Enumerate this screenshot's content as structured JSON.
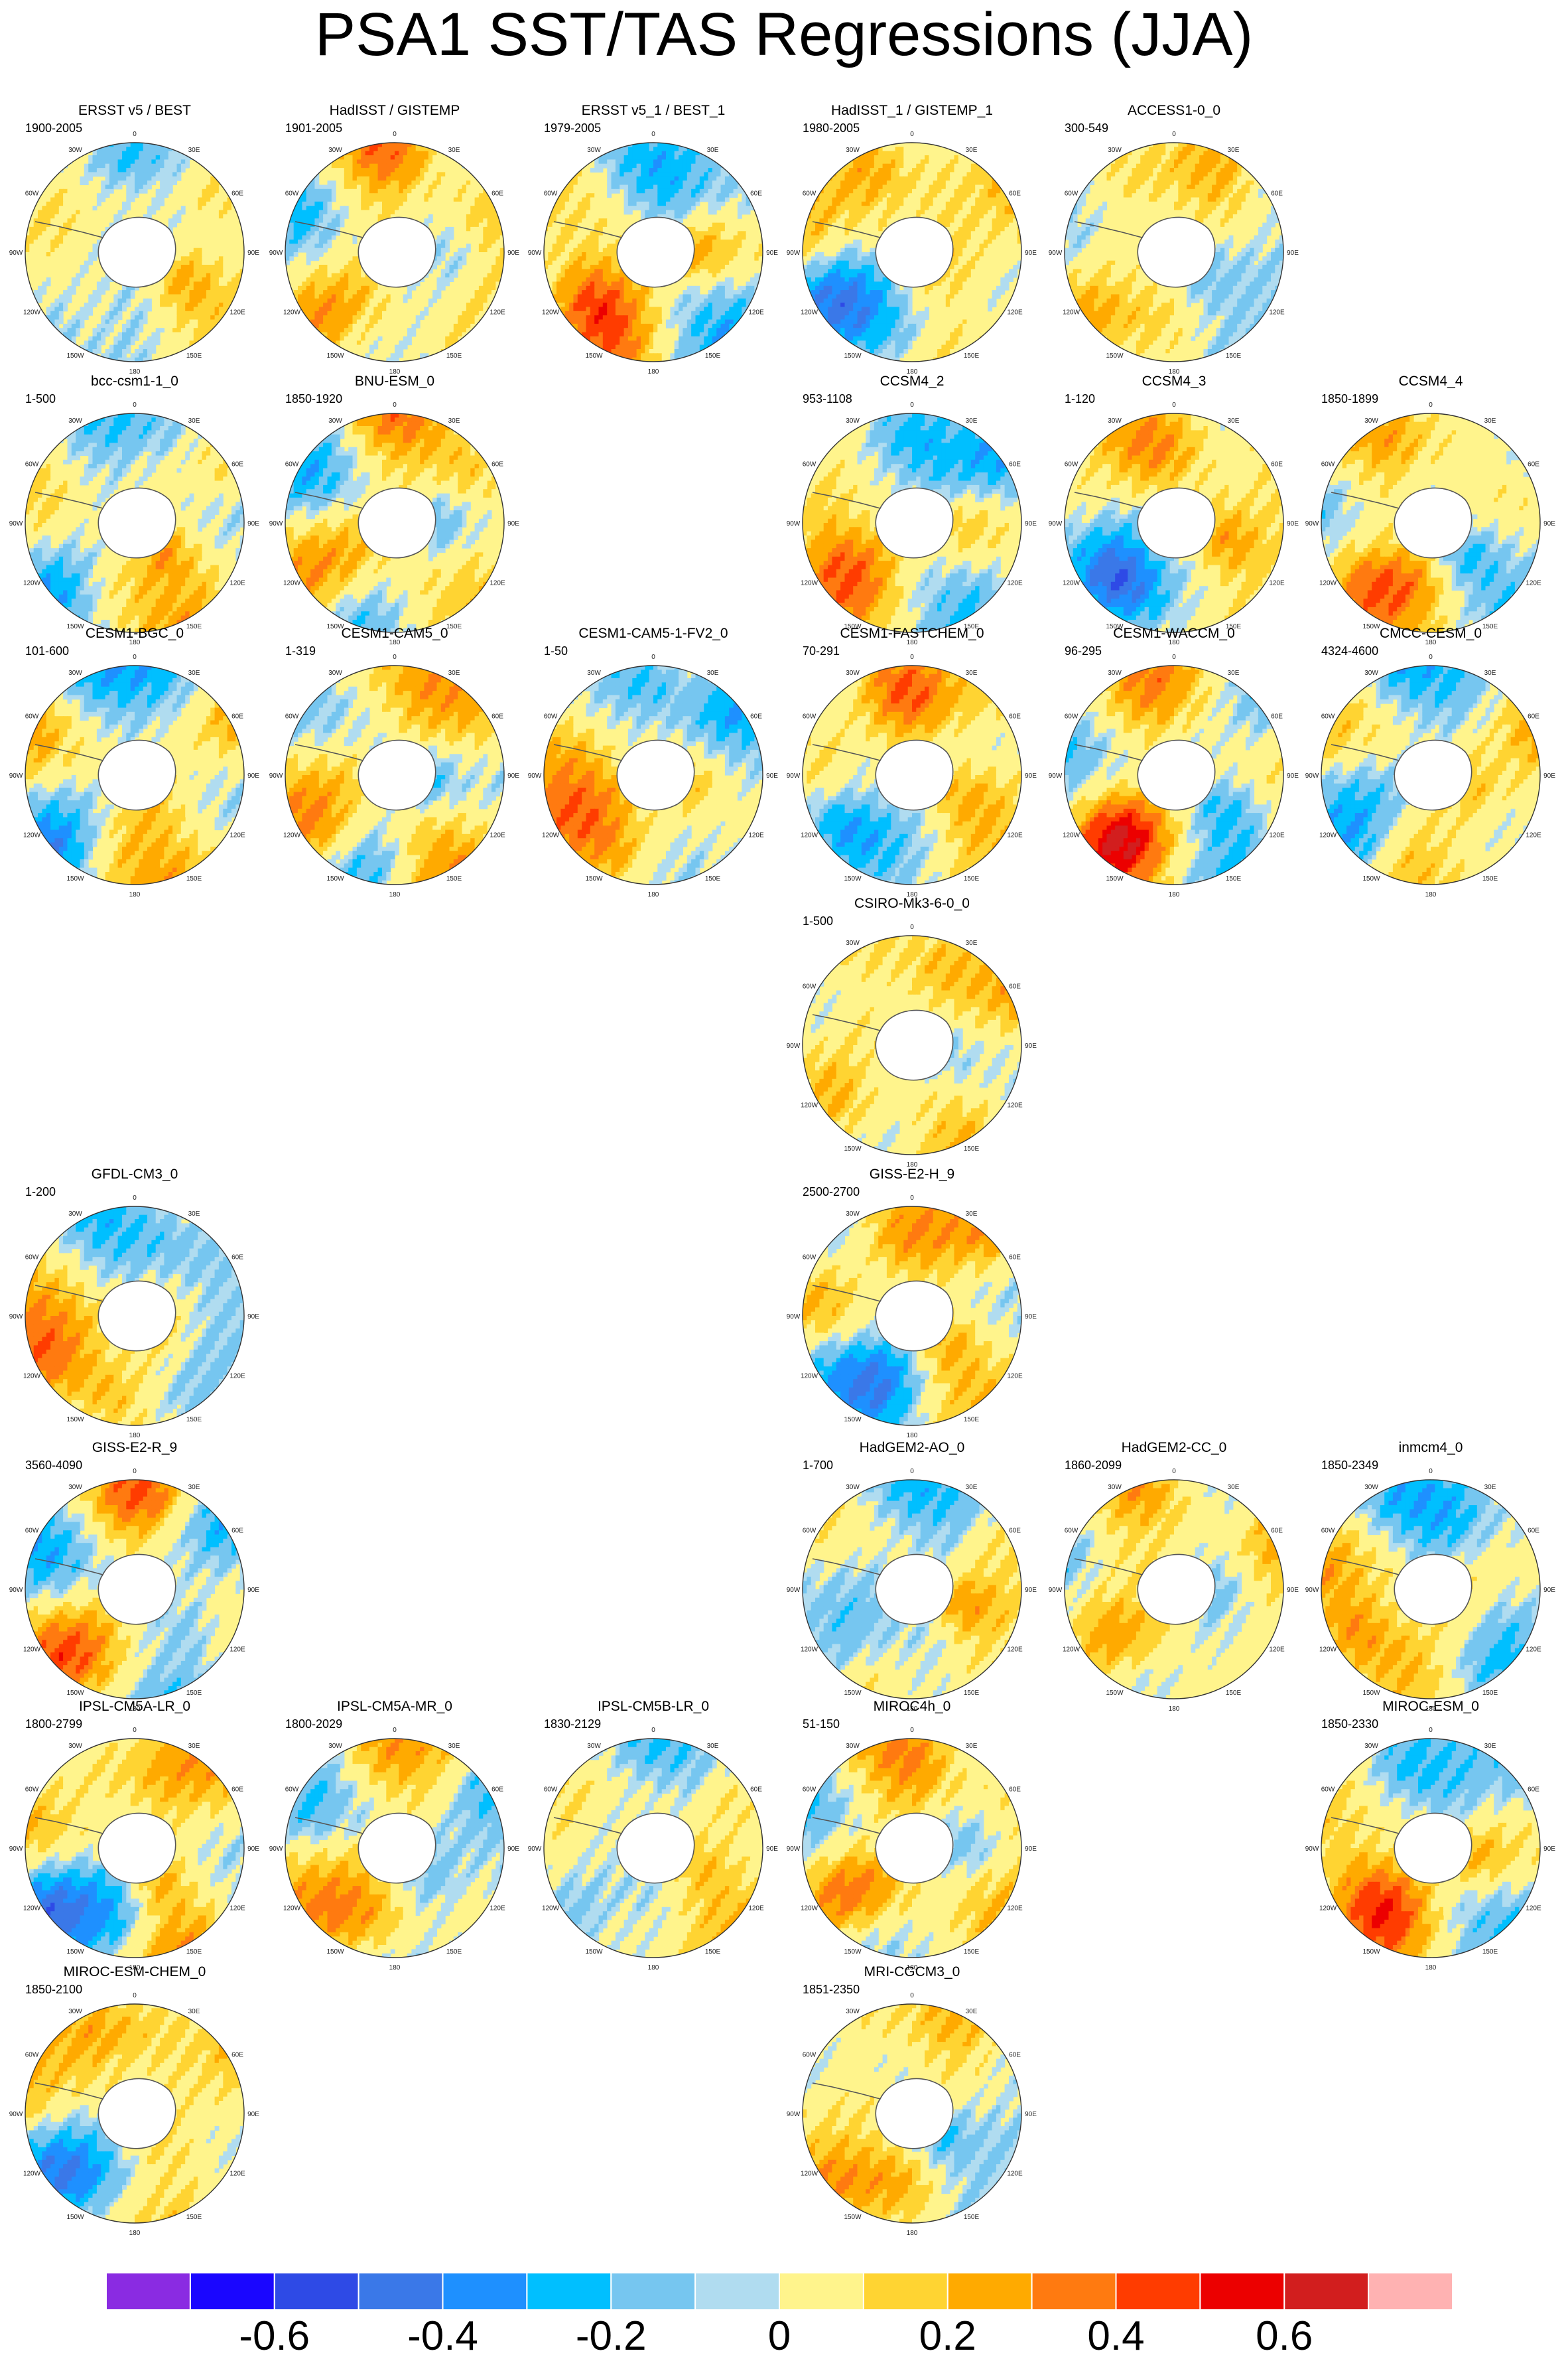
{
  "chart_data": {
    "type": "map",
    "title": "PSA1 SST/TAS Regressions (JJA)",
    "projection": "south-polar stereographic",
    "lon_labels": [
      "0",
      "30E",
      "60E",
      "90E",
      "120E",
      "150E",
      "180",
      "150W",
      "120W",
      "90W",
      "60W",
      "30W"
    ],
    "panels": [
      {
        "name": "ERSST v5 / BEST",
        "years": "1900-2005",
        "row": 0,
        "col": 0
      },
      {
        "name": "HadISST / GISTEMP",
        "years": "1901-2005",
        "row": 0,
        "col": 1
      },
      {
        "name": "ERSST v5_1 / BEST_1",
        "years": "1979-2005",
        "row": 0,
        "col": 2
      },
      {
        "name": "HadISST_1 / GISTEMP_1",
        "years": "1980-2005",
        "row": 0,
        "col": 3
      },
      {
        "name": "ACCESS1-0_0",
        "years": "300-549",
        "row": 0,
        "col": 4
      },
      {
        "name": "bcc-csm1-1_0",
        "years": "1-500",
        "row": 1,
        "col": 0
      },
      {
        "name": "BNU-ESM_0",
        "years": "1850-1920",
        "row": 1,
        "col": 1
      },
      {
        "name": "CCSM4_2",
        "years": "953-1108",
        "row": 1,
        "col": 3
      },
      {
        "name": "CCSM4_3",
        "years": "1-120",
        "row": 1,
        "col": 4
      },
      {
        "name": "CCSM4_4",
        "years": "1850-1899",
        "row": 1,
        "col": 5
      },
      {
        "name": "CESM1-BGC_0",
        "years": "101-600",
        "row": 2,
        "col": 0
      },
      {
        "name": "CESM1-CAM5_0",
        "years": "1-319",
        "row": 2,
        "col": 1
      },
      {
        "name": "CESM1-CAM5-1-FV2_0",
        "years": "1-50",
        "row": 2,
        "col": 2
      },
      {
        "name": "CESM1-FASTCHEM_0",
        "years": "70-291",
        "row": 2,
        "col": 3
      },
      {
        "name": "CESM1-WACCM_0",
        "years": "96-295",
        "row": 2,
        "col": 4
      },
      {
        "name": "CMCC-CESM_0",
        "years": "4324-4600",
        "row": 2,
        "col": 5
      },
      {
        "name": "CSIRO-Mk3-6-0_0",
        "years": "1-500",
        "row": 3,
        "col": 3
      },
      {
        "name": "GFDL-CM3_0",
        "years": "1-200",
        "row": 4,
        "col": 0
      },
      {
        "name": "GISS-E2-H_9",
        "years": "2500-2700",
        "row": 4,
        "col": 3
      },
      {
        "name": "GISS-E2-R_9",
        "years": "3560-4090",
        "row": 5,
        "col": 0
      },
      {
        "name": "HadGEM2-AO_0",
        "years": "1-700",
        "row": 5,
        "col": 3
      },
      {
        "name": "HadGEM2-CC_0",
        "years": "1860-2099",
        "row": 5,
        "col": 4
      },
      {
        "name": "inmcm4_0",
        "years": "1850-2349",
        "row": 5,
        "col": 5
      },
      {
        "name": "IPSL-CM5A-LR_0",
        "years": "1800-2799",
        "row": 6,
        "col": 0
      },
      {
        "name": "IPSL-CM5A-MR_0",
        "years": "1800-2029",
        "row": 6,
        "col": 1
      },
      {
        "name": "IPSL-CM5B-LR_0",
        "years": "1830-2129",
        "row": 6,
        "col": 2
      },
      {
        "name": "MIROC4h_0",
        "years": "51-150",
        "row": 6,
        "col": 3
      },
      {
        "name": "MIROC-ESM_0",
        "years": "1850-2330",
        "row": 6,
        "col": 5
      },
      {
        "name": "MIROC-ESM-CHEM_0",
        "years": "1850-2100",
        "row": 7,
        "col": 0
      },
      {
        "name": "MRI-CGCM3_0",
        "years": "1851-2350",
        "row": 7,
        "col": 3
      }
    ],
    "colorbar": {
      "levels": [
        -0.7,
        -0.6,
        -0.5,
        -0.4,
        -0.3,
        -0.2,
        -0.1,
        0,
        0.1,
        0.2,
        0.3,
        0.4,
        0.5,
        0.6,
        0.7
      ],
      "colors": [
        "#8a2be2",
        "#1a06ff",
        "#2e4ae6",
        "#3a78e8",
        "#1e90ff",
        "#00bfff",
        "#76c6f0",
        "#b0dcf0",
        "#fff48c",
        "#ffd432",
        "#ffaa00",
        "#ff7a10",
        "#ff3c00",
        "#ec0000",
        "#d21e1e",
        "#ffb2b2"
      ],
      "tick_labels": [
        "-0.6",
        "-0.4",
        "-0.2",
        "0",
        "0.2",
        "0.4",
        "0.6"
      ],
      "tick_values": [
        -0.6,
        -0.4,
        -0.2,
        0,
        0.2,
        0.4,
        0.6
      ]
    }
  }
}
